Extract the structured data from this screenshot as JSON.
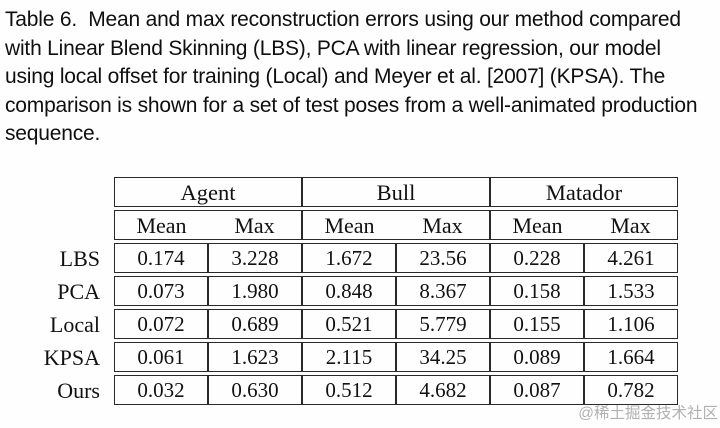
{
  "caption": {
    "lines": [
      "Table 6.  Mean and max reconstruction errors using our method compared",
      "with Linear Blend Skinning (LBS), PCA with linear regression, our model",
      "using local offset for training (Local) and Meyer et al. [2007] (KPSA). The",
      "comparison is shown for a set of test poses from a well-animated production",
      "sequence."
    ]
  },
  "table": {
    "col_groups": [
      {
        "label": "Agent",
        "subcols": [
          "Mean",
          "Max"
        ]
      },
      {
        "label": "Bull",
        "subcols": [
          "Mean",
          "Max"
        ]
      },
      {
        "label": "Matador",
        "subcols": [
          "Mean",
          "Max"
        ]
      }
    ],
    "rows": [
      {
        "label": "LBS",
        "values": [
          "0.174",
          "3.228",
          "1.672",
          "23.56",
          "0.228",
          "4.261"
        ]
      },
      {
        "label": "PCA",
        "values": [
          "0.073",
          "1.980",
          "0.848",
          "8.367",
          "0.158",
          "1.533"
        ]
      },
      {
        "label": "Local",
        "values": [
          "0.072",
          "0.689",
          "0.521",
          "5.779",
          "0.155",
          "1.106"
        ]
      },
      {
        "label": "KPSA",
        "values": [
          "0.061",
          "1.623",
          "2.115",
          "34.25",
          "0.089",
          "1.664"
        ]
      },
      {
        "label": "Ours",
        "values": [
          "0.032",
          "0.630",
          "0.512",
          "4.682",
          "0.087",
          "0.782"
        ]
      }
    ]
  },
  "chart_data": {
    "type": "table",
    "title": "Table 6. Mean and max reconstruction errors",
    "col_groups": [
      "Agent",
      "Bull",
      "Matador"
    ],
    "columns": [
      "Agent Mean",
      "Agent Max",
      "Bull Mean",
      "Bull Max",
      "Matador Mean",
      "Matador Max"
    ],
    "row_labels": [
      "LBS",
      "PCA",
      "Local",
      "KPSA",
      "Ours"
    ],
    "values": [
      [
        0.174,
        3.228,
        1.672,
        23.56,
        0.228,
        4.261
      ],
      [
        0.073,
        1.98,
        0.848,
        8.367,
        0.158,
        1.533
      ],
      [
        0.072,
        0.689,
        0.521,
        5.779,
        0.155,
        1.106
      ],
      [
        0.061,
        1.623,
        2.115,
        34.25,
        0.089,
        1.664
      ],
      [
        0.032,
        0.63,
        0.512,
        4.682,
        0.087,
        0.782
      ]
    ]
  },
  "watermark": {
    "text": "@稀土掘金技术社区",
    "color": "#8c8c8c"
  },
  "colors": {
    "background": "#fefefe",
    "text": "#111111",
    "border": "#2a2a2a",
    "watermark": "#8c8c8c"
  }
}
